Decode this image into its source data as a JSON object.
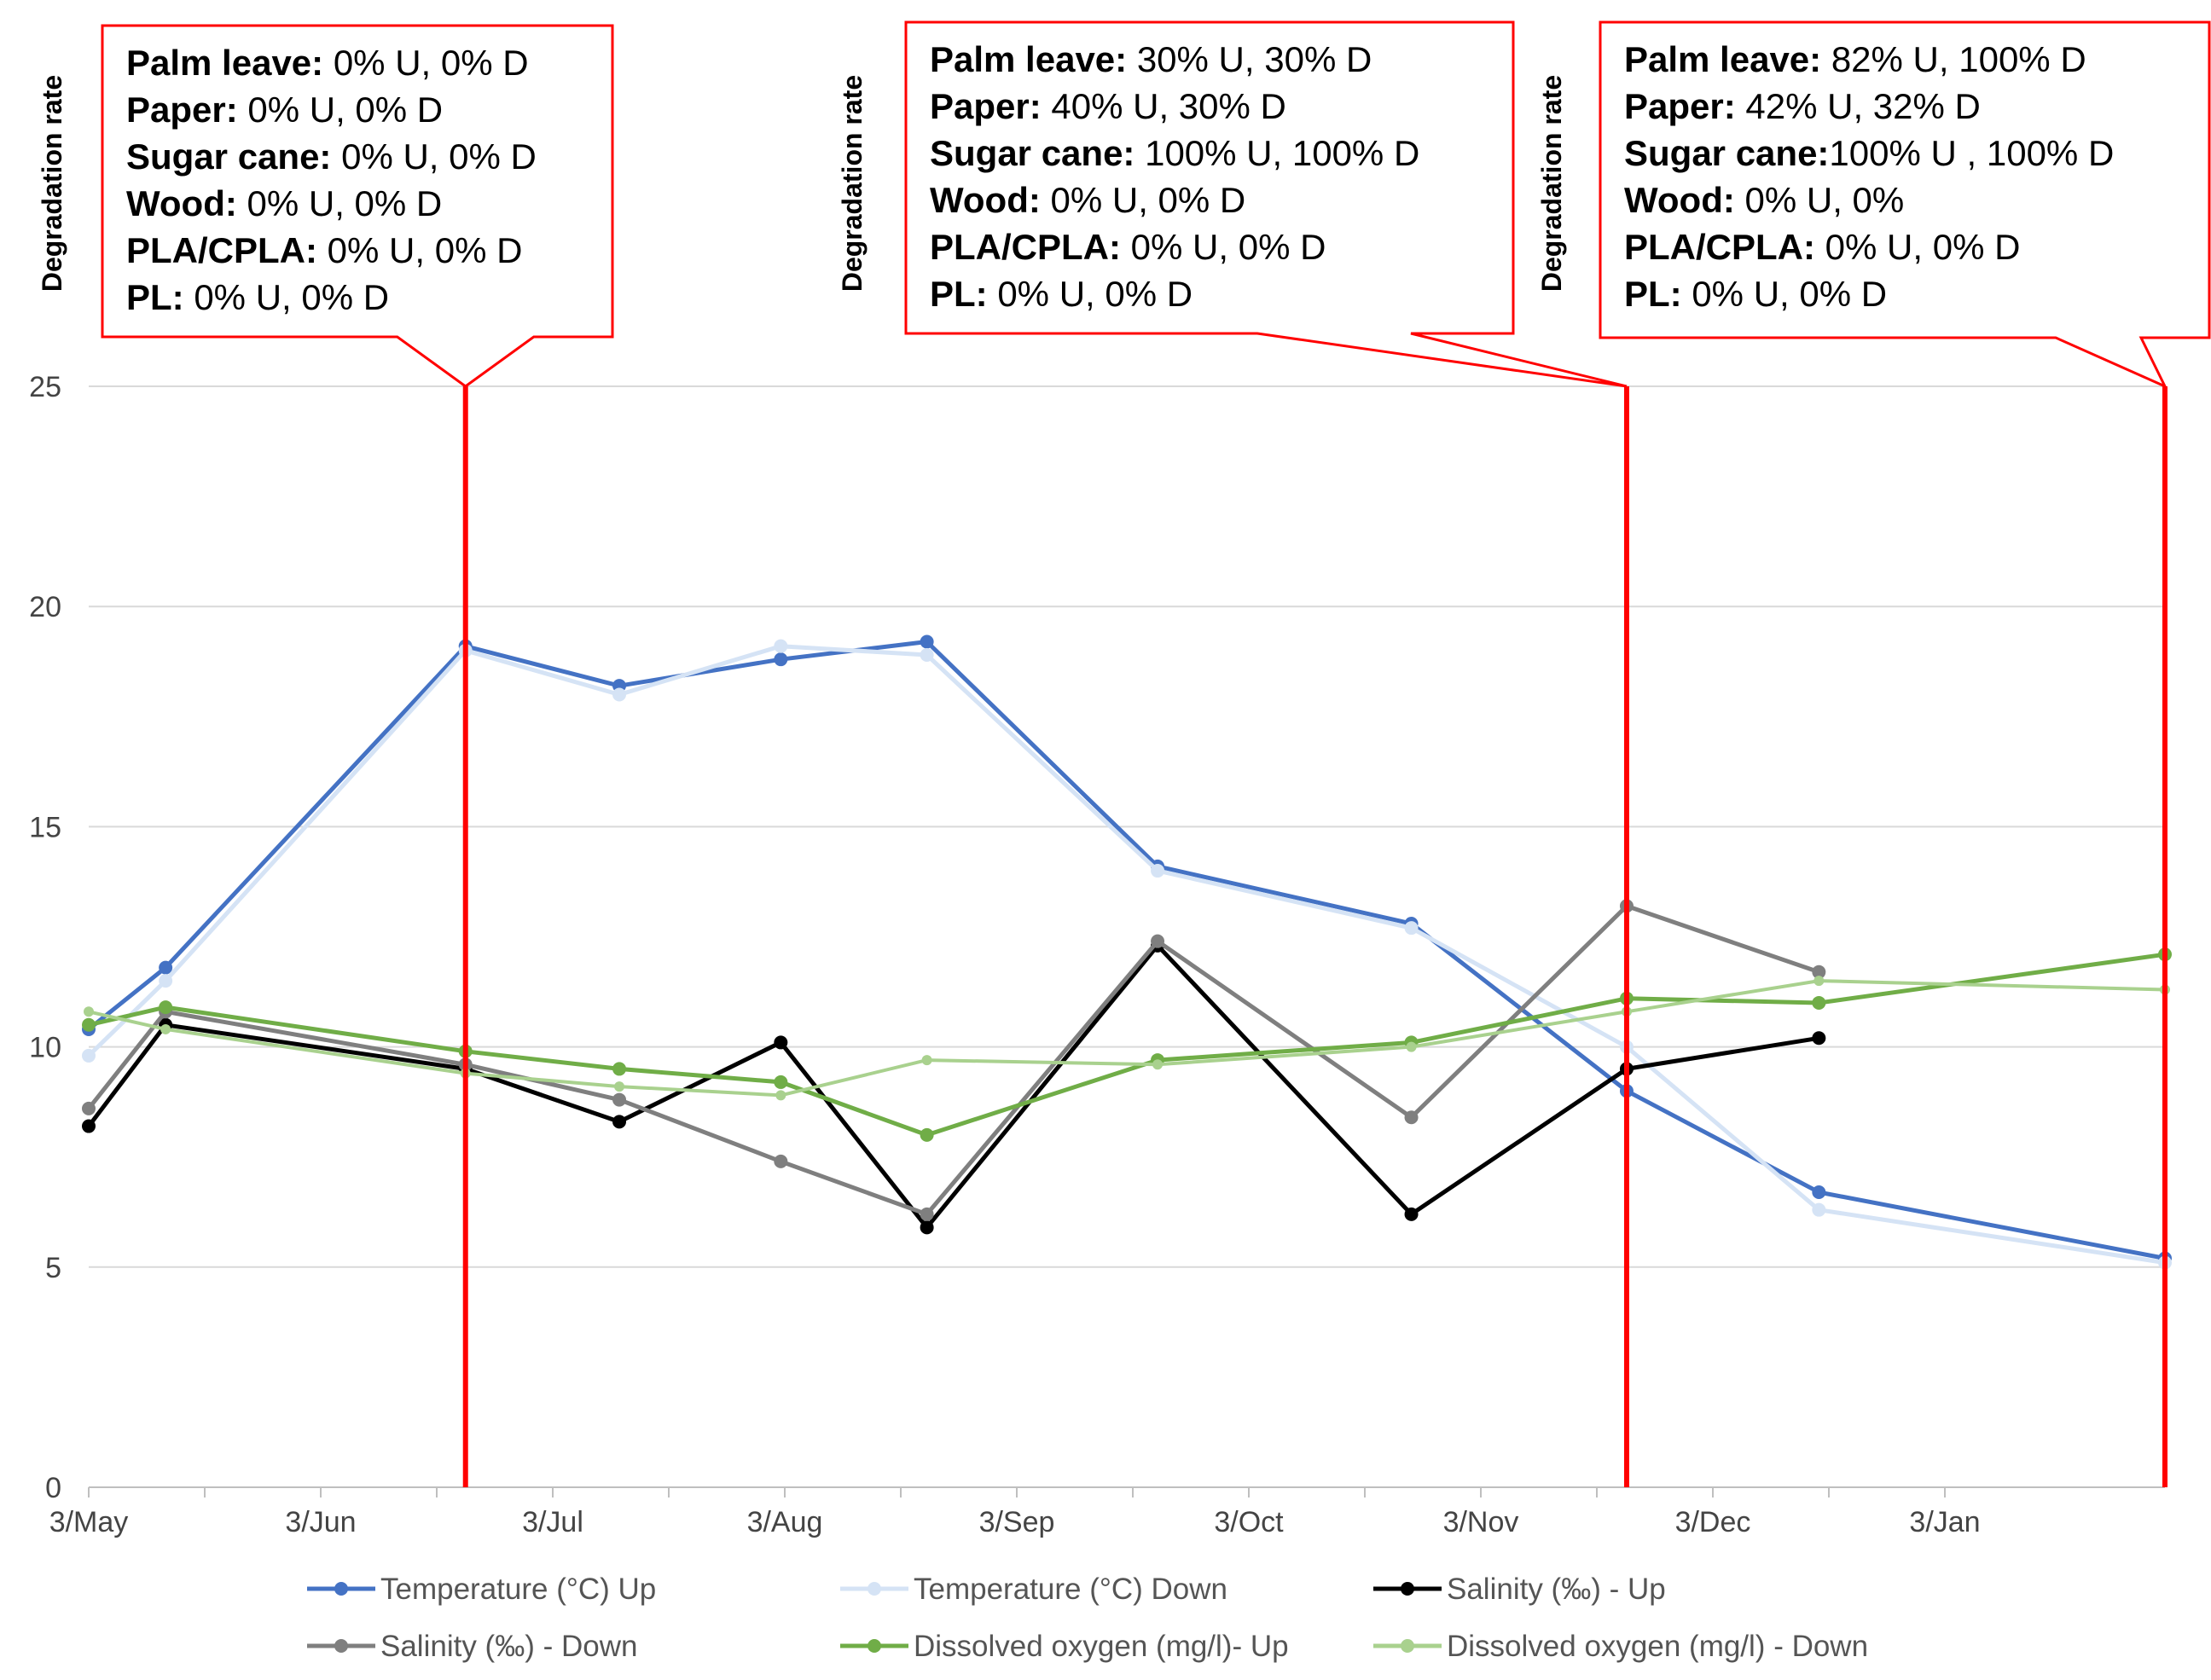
{
  "colors": {
    "temp_up": "#4472C4",
    "temp_down": "#D5E3F5",
    "sal_up": "#000000",
    "sal_down": "#7F7F7F",
    "do_up": "#70AD47",
    "do_down": "#A9D18E",
    "marker_line": "#FF0000",
    "grid": "#D9D9D9"
  },
  "chart_data": {
    "type": "line",
    "title": "",
    "xlabel": "",
    "ylabel": "",
    "x_tick_labels": [
      "3/May",
      "3/Jun",
      "3/Jul",
      "3/Aug",
      "3/Sep",
      "3/Oct",
      "3/Nov",
      "3/Dec",
      "3/Jan"
    ],
    "y_ticks": [
      "0",
      "5",
      "10",
      "15",
      "20",
      "25"
    ],
    "ylim": [
      0,
      25
    ],
    "xlim_days": [
      0,
      270
    ],
    "x_sample_days": [
      0,
      10,
      49,
      69,
      90,
      109,
      139,
      172,
      200,
      225,
      270
    ],
    "series": [
      {
        "name": "Temperature (°C) Up",
        "color_key": "temp_up",
        "values": [
          10.4,
          11.8,
          19.1,
          18.2,
          18.8,
          19.2,
          14.1,
          12.8,
          9.0,
          6.7,
          5.2
        ]
      },
      {
        "name": "Temperature (°C) Down",
        "color_key": "temp_down",
        "values": [
          9.8,
          11.5,
          19.0,
          18.0,
          19.1,
          18.9,
          14.0,
          12.7,
          10.0,
          6.3,
          5.1
        ]
      },
      {
        "name": "Salinity (‰) - Up",
        "color_key": "sal_up",
        "values": [
          8.2,
          10.5,
          9.5,
          8.3,
          10.1,
          5.9,
          12.3,
          6.2,
          9.5,
          10.2,
          null
        ]
      },
      {
        "name": "Salinity (‰) - Down",
        "color_key": "sal_down",
        "values": [
          8.6,
          10.8,
          9.6,
          8.8,
          7.4,
          6.2,
          12.4,
          8.4,
          13.2,
          11.7,
          null
        ]
      },
      {
        "name": "Dissolved oxygen (mg/l)- Up",
        "color_key": "do_up",
        "values": [
          10.5,
          10.9,
          9.9,
          9.5,
          9.2,
          8.0,
          9.7,
          10.1,
          11.1,
          11.0,
          12.1
        ]
      },
      {
        "name": "Dissolved oxygen (mg/l) - Down",
        "color_key": "do_down",
        "values": [
          10.8,
          10.4,
          9.4,
          9.1,
          8.9,
          9.7,
          9.6,
          10.0,
          10.8,
          11.5,
          11.3
        ]
      }
    ],
    "annotations": [
      {
        "vertical_label": "Degradation rate",
        "day": 49,
        "lines": [
          {
            "label": "Palm leave:",
            "text": " 0% U, 0% D"
          },
          {
            "label": "Paper:",
            "text": " 0% U, 0% D"
          },
          {
            "label": "Sugar cane:",
            "text": " 0% U, 0% D"
          },
          {
            "label": "Wood:",
            "text": "  0% U, 0% D"
          },
          {
            "label": "PLA/CPLA:",
            "text": "  0% U, 0% D"
          },
          {
            "label": "PL:",
            "text": "  0% U, 0% D"
          }
        ]
      },
      {
        "vertical_label": "Degradation rate",
        "day": 200,
        "lines": [
          {
            "label": "Palm leave:",
            "text": " 30% U, 30% D"
          },
          {
            "label": "Paper:",
            "text": " 40% U, 30% D"
          },
          {
            "label": "Sugar cane:",
            "text": " 100% U, 100% D"
          },
          {
            "label": "Wood:",
            "text": "  0% U, 0% D"
          },
          {
            "label": "PLA/CPLA:",
            "text": "  0% U, 0% D"
          },
          {
            "label": "PL:",
            "text": "  0% U, 0% D"
          }
        ]
      },
      {
        "vertical_label": "Degradation rate",
        "day": 270,
        "lines": [
          {
            "label": "Palm leave:",
            "text": " 82% U, 100% D"
          },
          {
            "label": "Paper:",
            "text": " 42% U, 32% D"
          },
          {
            "label": "Sugar cane:",
            "text": "100% U , 100% D"
          },
          {
            "label": "Wood:",
            "text": "  0% U, 0%"
          },
          {
            "label": "PLA/CPLA:",
            "text": "  0% U, 0% D"
          },
          {
            "label": "PL:",
            "text": "  0% U, 0% D"
          }
        ]
      }
    ],
    "legend_position": "bottom"
  }
}
